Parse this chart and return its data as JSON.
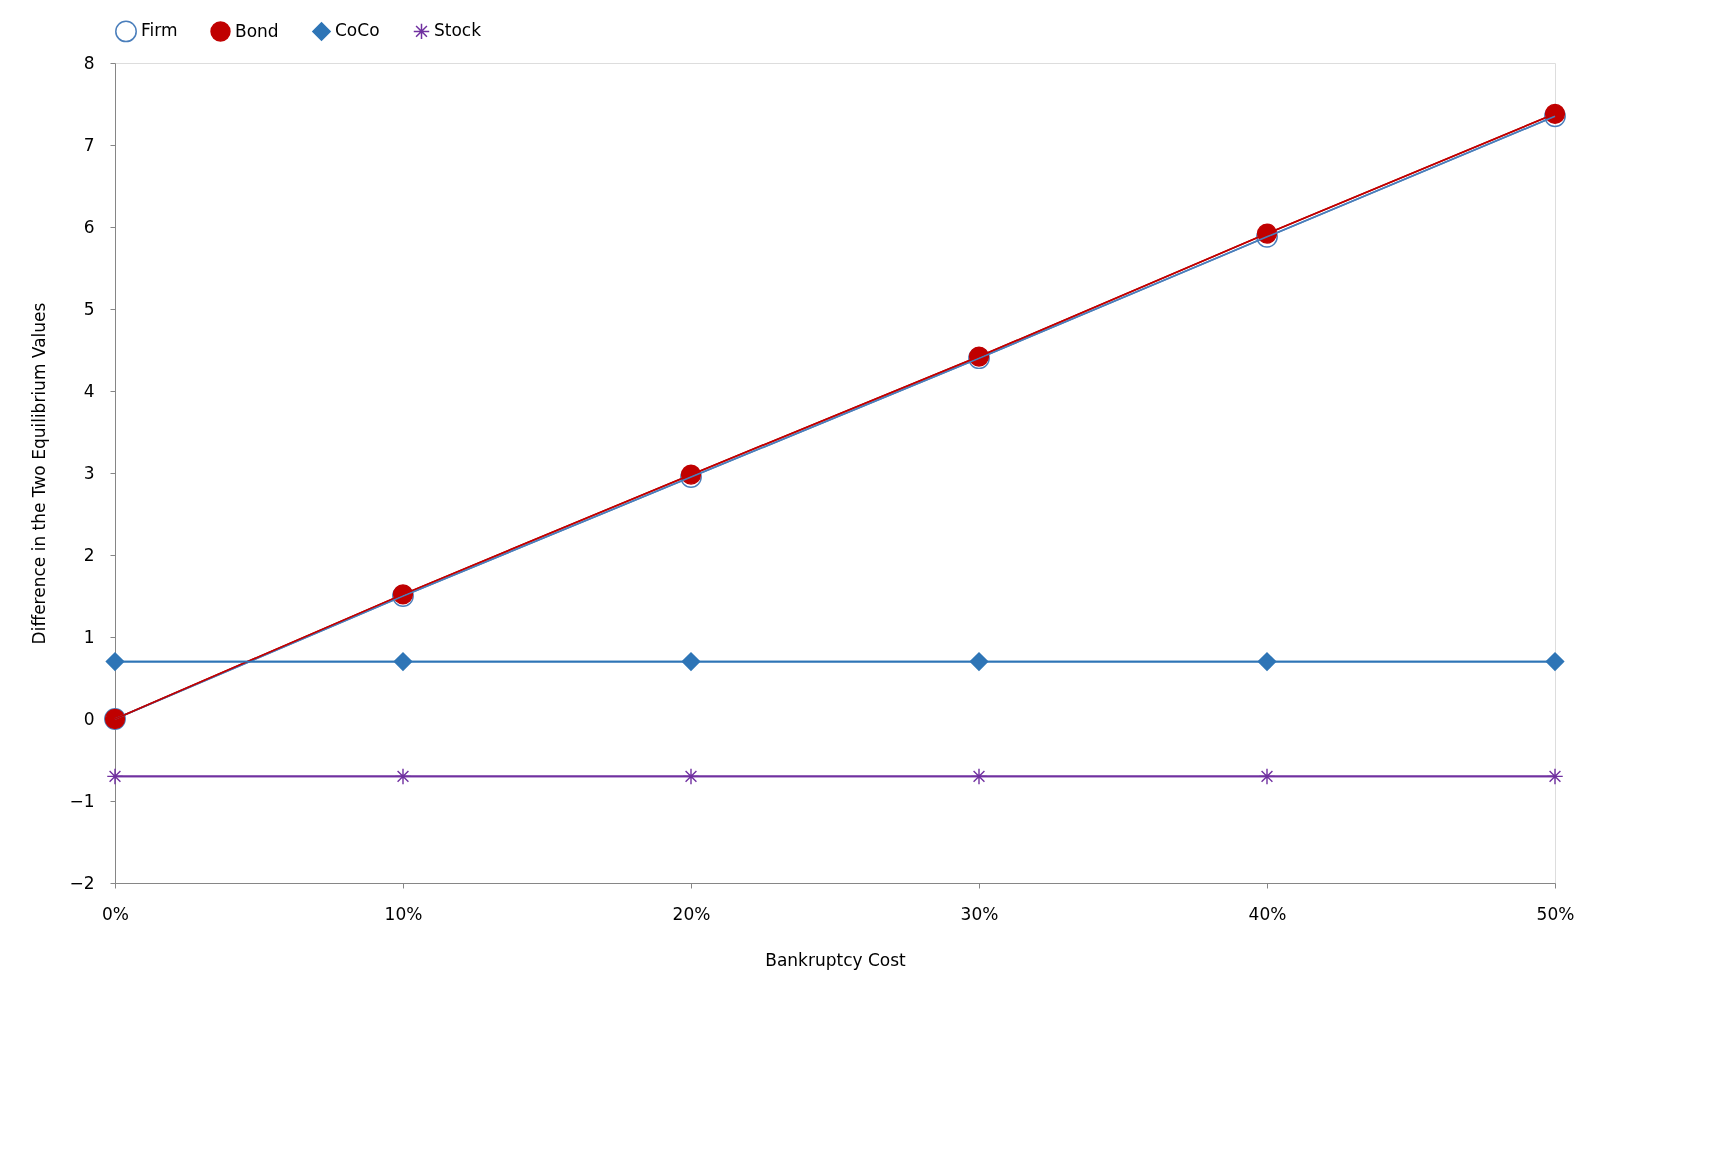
{
  "chart_data": {
    "type": "line",
    "xlabel": "Bankruptcy Cost",
    "ylabel": "Difference in the Two Equilibrium Values",
    "categories": [
      "0%",
      "10%",
      "20%",
      "30%",
      "40%",
      "50%"
    ],
    "series": [
      {
        "name": "Firm",
        "color": "#4a7ebb",
        "marker": "circle",
        "values": [
          0,
          1.5,
          2.95,
          4.4,
          5.88,
          7.35
        ]
      },
      {
        "name": "Bond",
        "color": "#c00000",
        "marker": "circle",
        "values": [
          0,
          1.52,
          2.98,
          4.42,
          5.92,
          7.38
        ]
      },
      {
        "name": "CoCo",
        "color": "#2e75b6",
        "marker": "diamond",
        "values": [
          0.7,
          0.7,
          0.7,
          0.7,
          0.7,
          0.7
        ]
      },
      {
        "name": "Stock",
        "color": "#7030a0",
        "marker": "cross",
        "values": [
          -0.7,
          -0.7,
          -0.7,
          -0.7,
          -0.7,
          -0.7
        ]
      }
    ],
    "ylim": [
      -2,
      8
    ],
    "yticks": [
      -2,
      -1,
      0,
      1,
      2,
      3,
      4,
      5,
      6,
      7,
      8
    ],
    "grid": false,
    "legend": "top",
    "line_style": "solid"
  }
}
